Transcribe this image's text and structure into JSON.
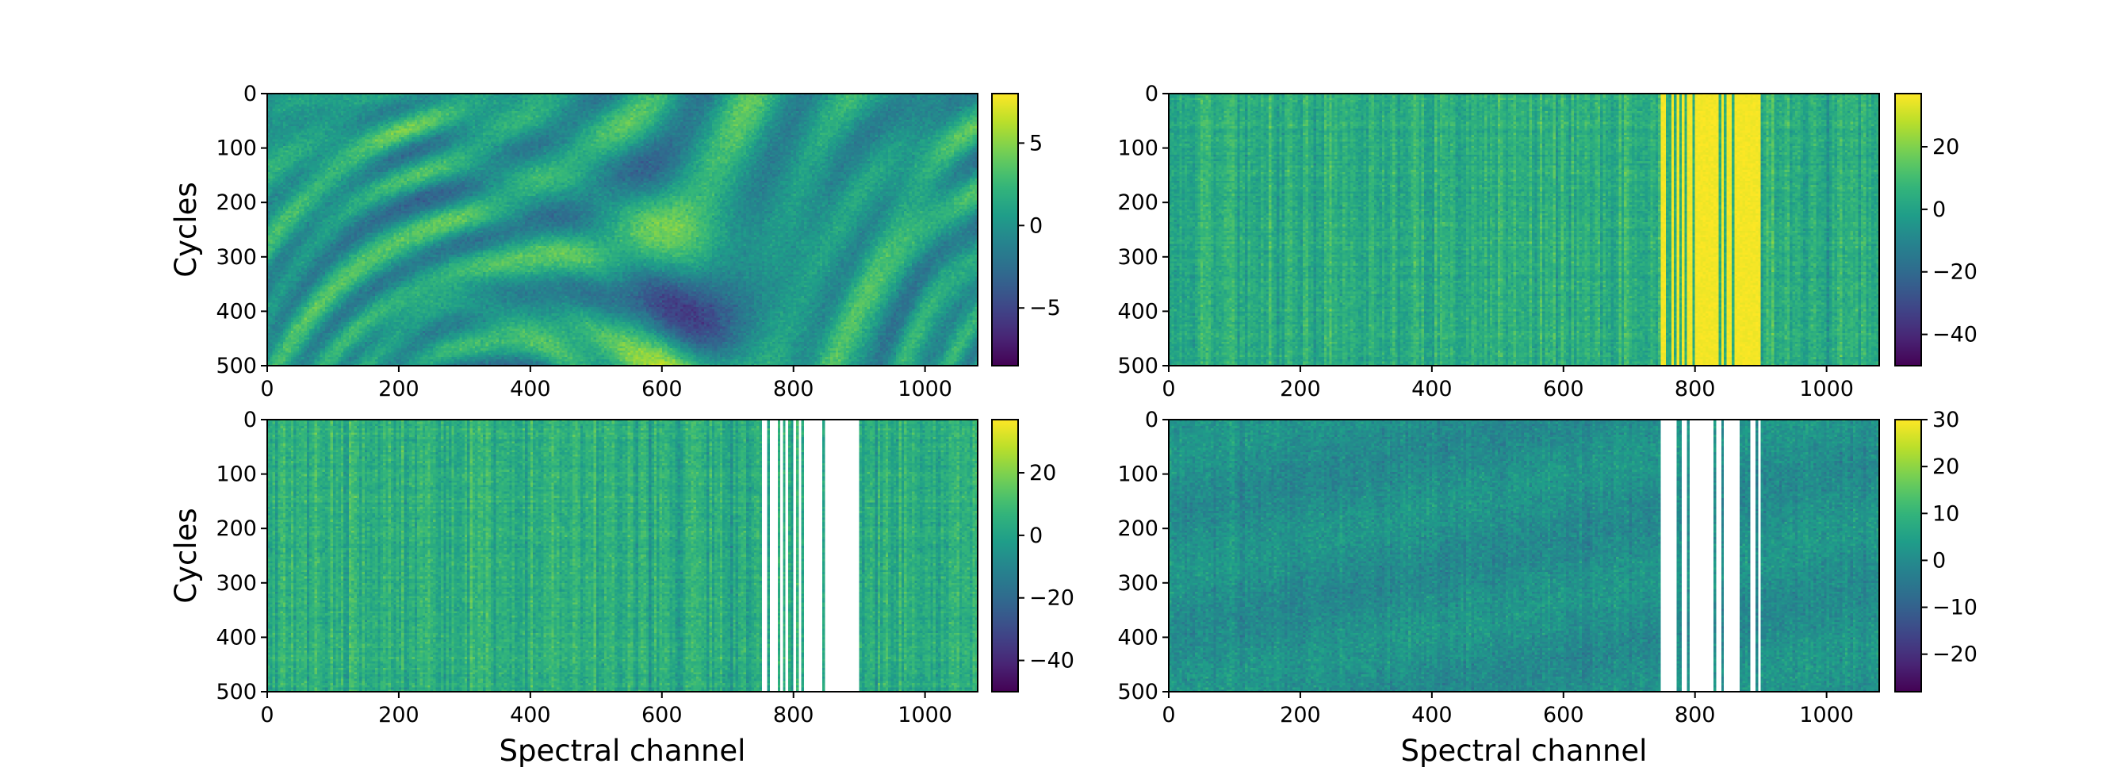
{
  "chart_data": [
    {
      "type": "heatmap",
      "panel": "top-left",
      "title": "",
      "xlabel": "",
      "ylabel": "Cycles",
      "xlim": [
        0,
        1080
      ],
      "ylim": [
        500,
        0
      ],
      "xticks": [
        0,
        200,
        400,
        600,
        800,
        1000
      ],
      "yticks": [
        0,
        100,
        200,
        300,
        400,
        500
      ],
      "colormap": "viridis",
      "colorbar": {
        "vmin": -8.5,
        "vmax": 8,
        "ticks": [
          -5,
          0,
          5
        ]
      },
      "texture": "smooth",
      "masked_columns": []
    },
    {
      "type": "heatmap",
      "panel": "top-right",
      "title": "",
      "xlabel": "",
      "ylabel": "",
      "xlim": [
        0,
        1080
      ],
      "ylim": [
        500,
        0
      ],
      "xticks": [
        0,
        200,
        400,
        600,
        800,
        1000
      ],
      "yticks": [
        0,
        100,
        200,
        300,
        400,
        500
      ],
      "colormap": "viridis",
      "colorbar": {
        "vmin": -50,
        "vmax": 37,
        "ticks": [
          -40,
          -20,
          0,
          20
        ]
      },
      "texture": "striped",
      "bright_band": [
        750,
        900
      ],
      "masked_columns": []
    },
    {
      "type": "heatmap",
      "panel": "bottom-left",
      "title": "",
      "xlabel": "Spectral channel",
      "ylabel": "Cycles",
      "xlim": [
        0,
        1080
      ],
      "ylim": [
        500,
        0
      ],
      "xticks": [
        0,
        200,
        400,
        600,
        800,
        1000
      ],
      "yticks": [
        0,
        100,
        200,
        300,
        400,
        500
      ],
      "colormap": "viridis",
      "colorbar": {
        "vmin": -50,
        "vmax": 37,
        "ticks": [
          -40,
          -20,
          0,
          20
        ]
      },
      "texture": "striped",
      "masked_columns": [
        [
          750,
          900
        ]
      ]
    },
    {
      "type": "heatmap",
      "panel": "bottom-right",
      "title": "",
      "xlabel": "Spectral channel",
      "ylabel": "",
      "xlim": [
        0,
        1080
      ],
      "ylim": [
        500,
        0
      ],
      "xticks": [
        0,
        200,
        400,
        600,
        800,
        1000
      ],
      "yticks": [
        0,
        100,
        200,
        300,
        400,
        500
      ],
      "colormap": "viridis",
      "colorbar": {
        "vmin": -28,
        "vmax": 30,
        "ticks": [
          -20,
          -10,
          0,
          10,
          20,
          30
        ]
      },
      "texture": "noisy",
      "masked_columns": [
        [
          750,
          900
        ]
      ]
    }
  ]
}
